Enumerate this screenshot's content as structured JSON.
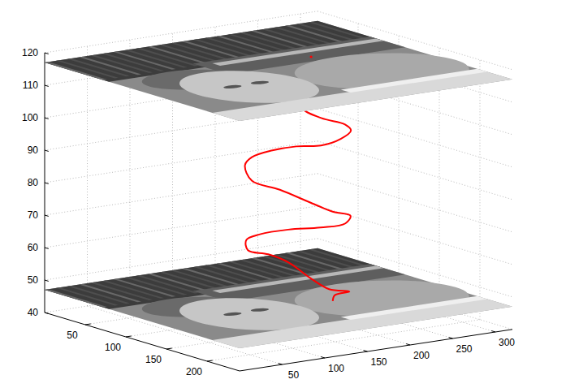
{
  "chart_data": {
    "type": "line3d",
    "xlim": [
      0,
      240
    ],
    "ylim": [
      0,
      320
    ],
    "zlim": [
      40,
      120
    ],
    "xticks": [
      50,
      100,
      150,
      200
    ],
    "yticks": [
      50,
      100,
      150,
      200,
      250,
      300
    ],
    "zticks": [
      40,
      50,
      60,
      70,
      80,
      90,
      100,
      110,
      120
    ],
    "grid": true,
    "planes_z": [
      47,
      117
    ],
    "series": [
      {
        "color": "#ff0000",
        "x": [
          95,
          96,
          96,
          98,
          99,
          100,
          101,
          102,
          103,
          104,
          105,
          106,
          107,
          108,
          109,
          110,
          111,
          112,
          113,
          114,
          115,
          116,
          118,
          120,
          124,
          128,
          134,
          140,
          144,
          150
        ],
        "y": [
          222,
          216,
          210,
          231,
          258,
          264,
          251,
          227,
          197,
          168,
          143,
          134,
          141,
          173,
          206,
          233,
          253,
          246,
          216,
          177,
          143,
          126,
          126,
          148,
          168,
          188,
          206,
          224,
          203,
          195
        ],
        "z": [
          117,
          107,
          102,
          98,
          95,
          93,
          91,
          90,
          91,
          91,
          90,
          88,
          83,
          79,
          74,
          70,
          68,
          66,
          66,
          67,
          67,
          66,
          63,
          61,
          58,
          53,
          49,
          48,
          48,
          47
        ]
      }
    ]
  }
}
